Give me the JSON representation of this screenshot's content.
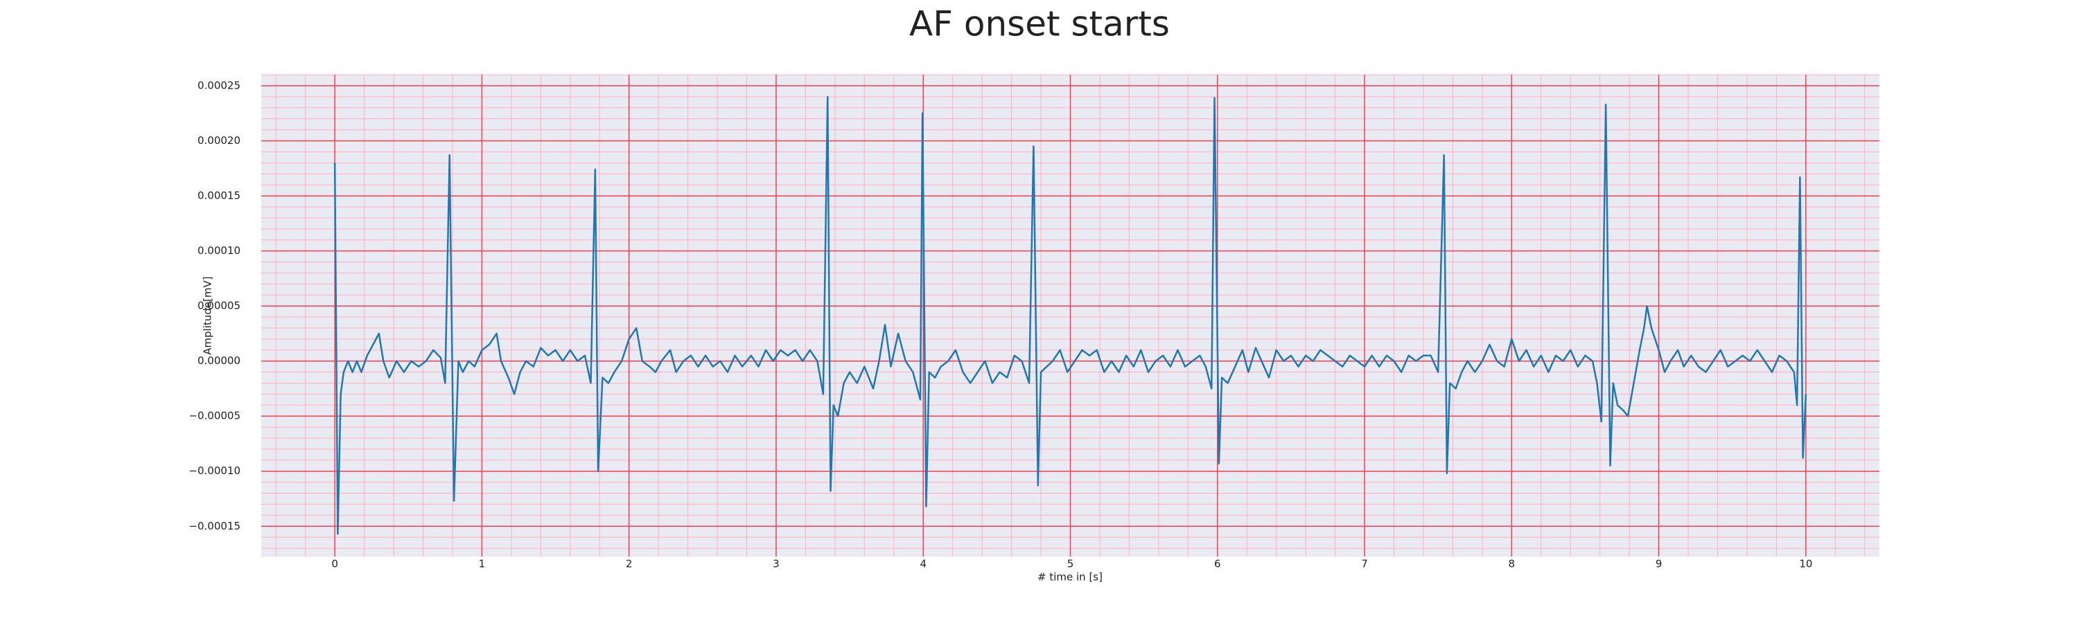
{
  "chart_data": {
    "type": "line",
    "title": "AF onset starts",
    "xlabel": "# time in [s]",
    "ylabel": "Amplitude[mV]",
    "color": "#1f77b4",
    "grid": true,
    "minor_divisions": 5,
    "xlim": [
      -0.5,
      10.5
    ],
    "ylim": [
      -0.0001775,
      0.00026
    ],
    "xticks": [
      0,
      1,
      2,
      3,
      4,
      5,
      6,
      7,
      8,
      9,
      10
    ],
    "yticks": [
      {
        "value": -0.00015,
        "label": "−0.00015"
      },
      {
        "value": -0.0001,
        "label": "−0.00010"
      },
      {
        "value": -5e-05,
        "label": "−0.00005"
      },
      {
        "value": 0,
        "label": "0.00000"
      },
      {
        "value": 5e-05,
        "label": "0.00005"
      },
      {
        "value": 0.0001,
        "label": "0.00010"
      },
      {
        "value": 0.00015,
        "label": "0.00015"
      },
      {
        "value": 0.0002,
        "label": "0.00020"
      },
      {
        "value": 0.00025,
        "label": "0.00025"
      }
    ],
    "x": [
      0,
      0.02,
      0.04,
      0.06,
      0.09,
      0.12,
      0.15,
      0.18,
      0.22,
      0.26,
      0.3,
      0.33,
      0.37,
      0.42,
      0.47,
      0.52,
      0.57,
      0.62,
      0.67,
      0.72,
      0.75,
      0.78,
      0.81,
      0.84,
      0.87,
      0.91,
      0.95,
      1.0,
      1.05,
      1.1,
      1.13,
      1.18,
      1.22,
      1.26,
      1.3,
      1.35,
      1.4,
      1.45,
      1.5,
      1.55,
      1.6,
      1.65,
      1.7,
      1.74,
      1.77,
      1.79,
      1.82,
      1.86,
      1.9,
      1.95,
      2.0,
      2.05,
      2.09,
      2.14,
      2.18,
      2.22,
      2.28,
      2.32,
      2.37,
      2.42,
      2.47,
      2.52,
      2.57,
      2.62,
      2.67,
      2.72,
      2.77,
      2.83,
      2.88,
      2.93,
      2.98,
      3.03,
      3.08,
      3.13,
      3.18,
      3.23,
      3.28,
      3.32,
      3.35,
      3.37,
      3.39,
      3.42,
      3.46,
      3.5,
      3.55,
      3.6,
      3.66,
      3.7,
      3.74,
      3.78,
      3.83,
      3.88,
      3.93,
      3.98,
      3.995,
      4.02,
      4.04,
      4.08,
      4.12,
      4.17,
      4.22,
      4.27,
      4.32,
      4.37,
      4.42,
      4.47,
      4.52,
      4.57,
      4.62,
      4.67,
      4.72,
      4.75,
      4.78,
      4.8,
      4.84,
      4.88,
      4.93,
      4.98,
      5.03,
      5.08,
      5.13,
      5.18,
      5.23,
      5.28,
      5.33,
      5.38,
      5.43,
      5.48,
      5.53,
      5.58,
      5.63,
      5.68,
      5.73,
      5.78,
      5.83,
      5.88,
      5.92,
      5.96,
      5.98,
      6.01,
      6.03,
      6.07,
      6.12,
      6.17,
      6.21,
      6.26,
      6.3,
      6.35,
      6.4,
      6.45,
      6.5,
      6.55,
      6.6,
      6.65,
      6.7,
      6.75,
      6.8,
      6.85,
      6.9,
      6.95,
      7.0,
      7.05,
      7.1,
      7.15,
      7.2,
      7.25,
      7.3,
      7.35,
      7.4,
      7.45,
      7.5,
      7.54,
      7.56,
      7.58,
      7.62,
      7.66,
      7.7,
      7.75,
      7.8,
      7.85,
      7.9,
      7.95,
      8.0,
      8.05,
      8.1,
      8.15,
      8.2,
      8.25,
      8.3,
      8.35,
      8.4,
      8.45,
      8.5,
      8.55,
      8.58,
      8.61,
      8.64,
      8.67,
      8.69,
      8.72,
      8.76,
      8.79,
      8.83,
      8.87,
      8.9,
      8.92,
      8.95,
      9.0,
      9.04,
      9.08,
      9.13,
      9.17,
      9.22,
      9.27,
      9.32,
      9.37,
      9.42,
      9.47,
      9.52,
      9.57,
      9.62,
      9.67,
      9.72,
      9.77,
      9.82,
      9.87,
      9.92,
      9.94,
      9.96,
      9.98,
      10.0
    ],
    "values": [
      0.00018,
      -0.000157,
      -3e-05,
      -1e-05,
      0,
      -1e-05,
      0,
      -1e-05,
      5e-06,
      1.5e-05,
      2.5e-05,
      0,
      -1.5e-05,
      0,
      -1e-05,
      0,
      -5e-06,
      0,
      1e-05,
      3e-06,
      -2e-05,
      0.000187,
      -0.000127,
      0,
      -1e-05,
      0,
      -5e-06,
      1e-05,
      1.5e-05,
      2.5e-05,
      0,
      -1.5e-05,
      -3e-05,
      -1e-05,
      0,
      -5e-06,
      1.2e-05,
      5e-06,
      1e-05,
      0,
      1e-05,
      0,
      5e-06,
      -2e-05,
      0.000174,
      -0.0001,
      -1.5e-05,
      -2e-05,
      -1e-05,
      0,
      2e-05,
      3e-05,
      0,
      -5e-06,
      -1e-05,
      0,
      1e-05,
      -1e-05,
      0,
      5e-06,
      -5e-06,
      5e-06,
      -5e-06,
      0,
      -1e-05,
      5e-06,
      -5e-06,
      5e-06,
      -5e-06,
      1e-05,
      0,
      1e-05,
      5e-06,
      1e-05,
      0,
      1e-05,
      0,
      -3e-05,
      0.00024,
      -0.000118,
      -4e-05,
      -5e-05,
      -2e-05,
      -1e-05,
      -2e-05,
      -5e-06,
      -2.5e-05,
      0,
      3.3e-05,
      -5e-06,
      2.5e-05,
      0,
      -1e-05,
      -3.5e-05,
      0.000225,
      -0.000132,
      -1e-05,
      -1.5e-05,
      -5e-06,
      0,
      1e-05,
      -1e-05,
      -2e-05,
      -1e-05,
      0,
      -2e-05,
      -1e-05,
      -1.5e-05,
      5e-06,
      0,
      -2e-05,
      0.000195,
      -0.000113,
      -1e-05,
      -5e-06,
      0,
      1e-05,
      -1e-05,
      0,
      1e-05,
      5e-06,
      1e-05,
      -1e-05,
      0,
      -1e-05,
      5e-06,
      -5e-06,
      1e-05,
      -1e-05,
      0,
      5e-06,
      -5e-06,
      1e-05,
      -5e-06,
      0,
      5e-06,
      -5e-06,
      -2.5e-05,
      0.000239,
      -9.3e-05,
      -1.5e-05,
      -2e-05,
      -5e-06,
      1e-05,
      -1e-05,
      1.2e-05,
      0,
      -1.5e-05,
      1e-05,
      0,
      5e-06,
      -5e-06,
      5e-06,
      0,
      1e-05,
      5e-06,
      0,
      -5e-06,
      5e-06,
      0,
      -5e-06,
      5e-06,
      -5e-06,
      5e-06,
      0,
      -1e-05,
      5e-06,
      0,
      5e-06,
      5e-06,
      -1e-05,
      0.000187,
      -0.000102,
      -2e-05,
      -2.5e-05,
      -1e-05,
      0,
      -1e-05,
      0,
      1.5e-05,
      0,
      -5e-06,
      2e-05,
      0,
      1e-05,
      -5e-06,
      5e-06,
      -1e-05,
      5e-06,
      0,
      1e-05,
      -5e-06,
      5e-06,
      0,
      -2e-05,
      -5.5e-05,
      0.000233,
      -9.5e-05,
      -2e-05,
      -4e-05,
      -4.5e-05,
      -5e-05,
      -2e-05,
      1e-05,
      3e-05,
      5e-05,
      3e-05,
      1e-05,
      -1e-05,
      0,
      1e-05,
      -5e-06,
      5e-06,
      -5e-06,
      -1e-05,
      0,
      1e-05,
      -5e-06,
      0,
      5e-06,
      0,
      1e-05,
      0,
      -1e-05,
      5e-06,
      0,
      -1e-05,
      -4e-05,
      0.000167,
      -8.8e-05,
      -3e-05
    ]
  }
}
